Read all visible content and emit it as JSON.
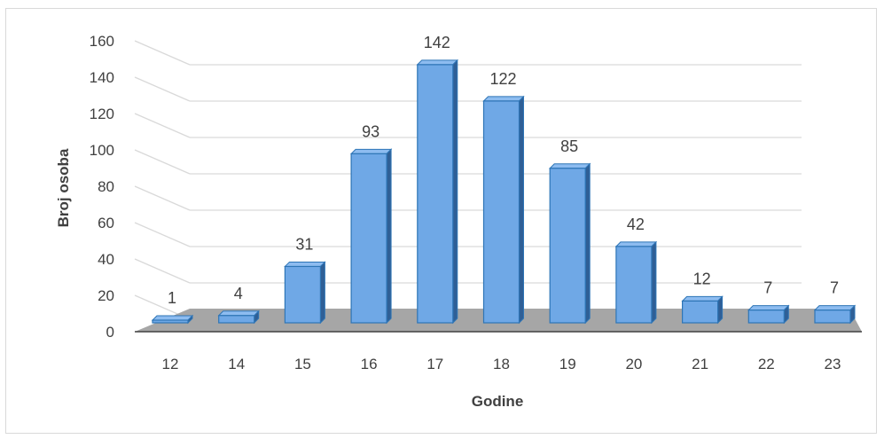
{
  "chart_data": {
    "type": "bar",
    "title": "",
    "xlabel": "Godine",
    "ylabel": "Broj osoba",
    "categories": [
      "12",
      "14",
      "15",
      "16",
      "17",
      "18",
      "19",
      "20",
      "21",
      "22",
      "23"
    ],
    "values": [
      1,
      4,
      31,
      93,
      142,
      122,
      85,
      42,
      12,
      7,
      7
    ],
    "ylim": [
      0,
      160
    ],
    "yticks": [
      "0",
      "20",
      "40",
      "60",
      "80",
      "100",
      "120",
      "140",
      "160"
    ],
    "grid": true,
    "legend": "none",
    "colors": {
      "bar_front": "#6fa8e6",
      "bar_side": "#2f5f96",
      "bar_top": "#8dbcf0",
      "bar_edge": "#2e75b6",
      "floor": "#a6a6a6",
      "grid": "#d9d9d9",
      "axis": "#404040"
    }
  }
}
